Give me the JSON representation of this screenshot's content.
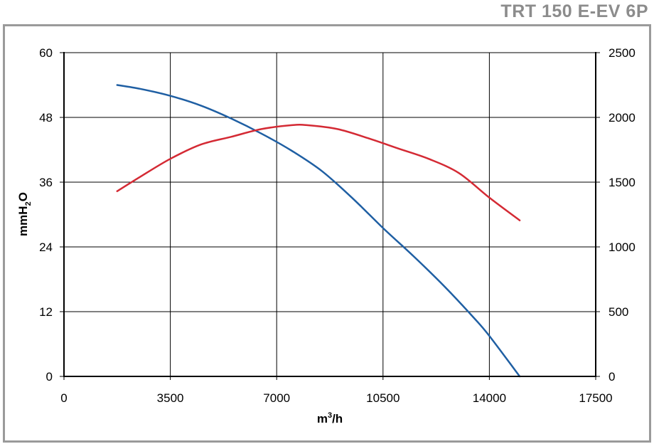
{
  "header": {
    "model": "TRT 150 E-EV 6P"
  },
  "chart_data": {
    "type": "line",
    "title": "TRT 150 E-EV 6P",
    "xlabel": {
      "base": "m",
      "sup": "3",
      "rest": "/h"
    },
    "ylabel": {
      "base": "mmH",
      "sub": "2",
      "rest": "O"
    },
    "xlim": [
      0,
      17500
    ],
    "ylim_left": [
      0,
      60
    ],
    "ylim_right": [
      0,
      2500
    ],
    "x_ticks": [
      "0",
      "3500",
      "7000",
      "10500",
      "14000",
      "17500"
    ],
    "y_ticks_left": [
      "0",
      "12",
      "24",
      "36",
      "48",
      "60"
    ],
    "y_ticks_right": [
      "0",
      "500",
      "1000",
      "1500",
      "2000",
      "2500"
    ],
    "grid": true,
    "legend": "none",
    "series": [
      {
        "axis": "left",
        "color": "#1f5fa3",
        "x": [
          1750,
          2500,
          3500,
          4500,
          5500,
          6500,
          7500,
          8500,
          9500,
          10500,
          11500,
          12500,
          13500,
          14000,
          15000
        ],
        "y": [
          54.0,
          53.3,
          52.0,
          50.2,
          47.8,
          45.0,
          41.8,
          38.0,
          33.0,
          27.5,
          22.3,
          16.8,
          10.8,
          7.5,
          0.0
        ]
      },
      {
        "axis": "right",
        "color": "#d42a34",
        "x": [
          1750,
          2500,
          3500,
          4500,
          5500,
          6500,
          7500,
          8000,
          9000,
          10000,
          11000,
          12000,
          13000,
          14000,
          15000
        ],
        "y": [
          1430,
          1540,
          1680,
          1790,
          1850,
          1910,
          1940,
          1940,
          1910,
          1840,
          1760,
          1680,
          1570,
          1380,
          1205
        ]
      }
    ]
  }
}
